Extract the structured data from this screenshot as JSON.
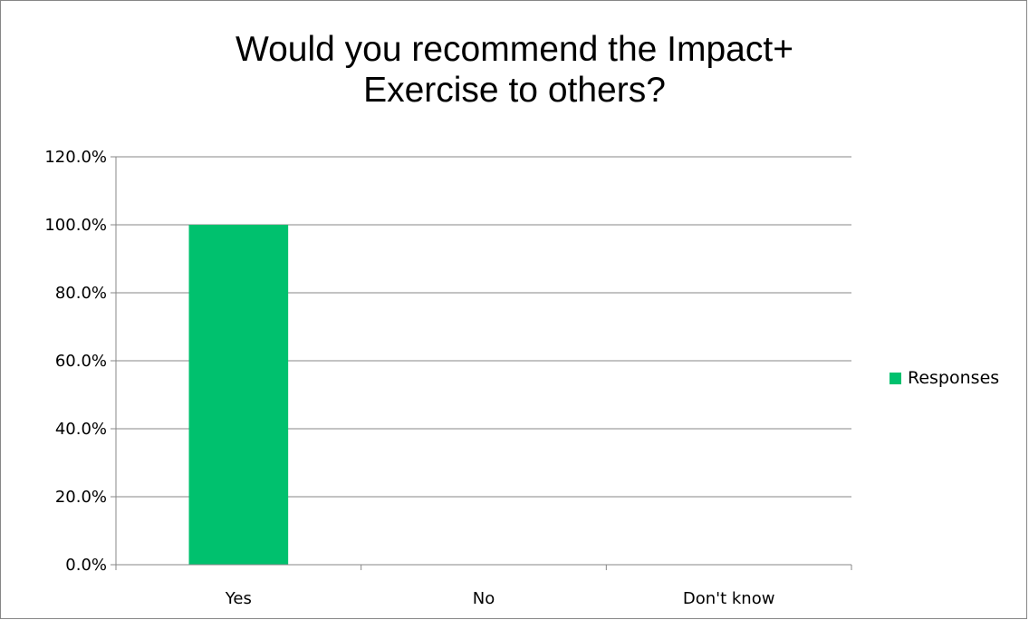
{
  "chart_data": {
    "type": "bar",
    "title": "Would you recommend the Impact+ Exercise to others?",
    "title_lines": [
      "Would you recommend the Impact+",
      "Exercise to others?"
    ],
    "categories": [
      "Yes",
      "No",
      "Don't know"
    ],
    "series": [
      {
        "name": "Responses",
        "values": [
          100.0,
          0.0,
          0.0
        ],
        "color": "#00c16e"
      }
    ],
    "xlabel": "",
    "ylabel": "",
    "ylim": [
      0,
      120
    ],
    "yticks": [
      0,
      20,
      40,
      60,
      80,
      100,
      120
    ],
    "ytick_labels": [
      "0.0%",
      "20.0%",
      "40.0%",
      "60.0%",
      "80.0%",
      "100.0%",
      "120.0%"
    ],
    "grid": true,
    "legend_position": "right"
  }
}
